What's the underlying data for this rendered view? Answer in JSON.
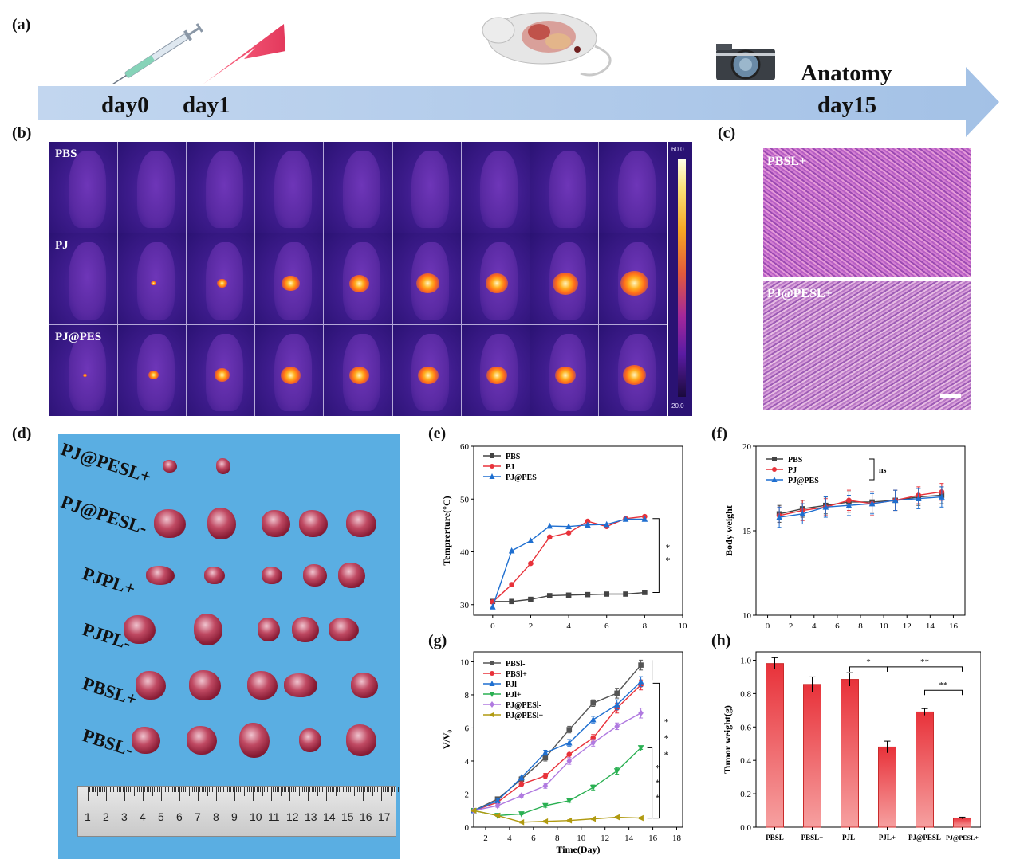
{
  "panels": {
    "a": "(a)",
    "b": "(b)",
    "c": "(c)",
    "d": "(d)",
    "e": "(e)",
    "f": "(f)",
    "g": "(g)",
    "h": "(h)"
  },
  "timeline": {
    "day0": "day0",
    "day1": "day1",
    "anatomy": "Anatomy",
    "day15": "day15"
  },
  "thermal": {
    "rows": [
      "PBS",
      "PJ",
      "PJ@PES"
    ],
    "colorbar_max": "60.0",
    "colorbar_min": "20.0"
  },
  "histology": {
    "top_label": "PBSL+",
    "bottom_label": "PJ@PESL+"
  },
  "tumor_photo": {
    "groups": [
      "PJ@PESL+",
      "PJ@PESL-",
      "PJPL+",
      "PJPL-",
      "PBSL+",
      "PBSL-"
    ],
    "ruler_numbers": [
      "1",
      "2",
      "3",
      "4",
      "5",
      "6",
      "7",
      "8",
      "9",
      "10",
      "11",
      "12",
      "13",
      "14",
      "15",
      "16",
      "17"
    ]
  },
  "chart_data": [
    {
      "id": "e",
      "type": "line",
      "xlabel": "Time(s)",
      "ylabel": "Temprerture(°C)",
      "xlim": [
        -1,
        10
      ],
      "ylim": [
        28,
        60
      ],
      "xticks": [
        0,
        2,
        4,
        6,
        8,
        10
      ],
      "yticks": [
        30,
        40,
        50,
        60
      ],
      "legend": "top-left",
      "x": [
        0,
        1,
        2,
        3,
        4,
        5,
        6,
        7,
        8
      ],
      "series": [
        {
          "name": "PBS",
          "color": "#444444",
          "marker": "square",
          "values": [
            30.6,
            30.6,
            31.0,
            31.7,
            31.8,
            31.9,
            32.0,
            32.0,
            32.3
          ]
        },
        {
          "name": "PJ",
          "color": "#e8323a",
          "marker": "circle",
          "values": [
            30.5,
            33.8,
            37.8,
            42.8,
            43.6,
            45.8,
            44.8,
            46.3,
            46.7
          ]
        },
        {
          "name": "PJ@PES",
          "color": "#1f6fd0",
          "marker": "triangle",
          "values": [
            29.6,
            40.2,
            42.1,
            44.9,
            44.8,
            45.1,
            45.2,
            46.2,
            46.2
          ]
        }
      ],
      "annotations": [
        "*",
        "*"
      ]
    },
    {
      "id": "f",
      "type": "line",
      "xlabel": "Time(Day)",
      "ylabel": "Body weight",
      "xlim": [
        -1,
        17
      ],
      "ylim": [
        10,
        20
      ],
      "xticks": [
        0,
        2,
        4,
        6,
        8,
        10,
        12,
        14,
        16
      ],
      "yticks": [
        10,
        15,
        20
      ],
      "legend": "top-left",
      "x": [
        1,
        3,
        5,
        7,
        9,
        11,
        13,
        15
      ],
      "series": [
        {
          "name": "PBS",
          "color": "#444444",
          "marker": "square",
          "values": [
            16.0,
            16.3,
            16.5,
            16.7,
            16.7,
            16.8,
            17.0,
            17.1
          ],
          "err": [
            0.5,
            0.5,
            0.5,
            0.6,
            0.6,
            0.6,
            0.5,
            0.5
          ]
        },
        {
          "name": "PJ",
          "color": "#e8323a",
          "marker": "circle",
          "values": [
            15.9,
            16.2,
            16.4,
            16.8,
            16.6,
            16.8,
            17.1,
            17.3
          ],
          "err": [
            0.5,
            0.6,
            0.5,
            0.6,
            0.7,
            0.6,
            0.5,
            0.5
          ]
        },
        {
          "name": "PJ@PES",
          "color": "#1f6fd0",
          "marker": "triangle",
          "values": [
            15.8,
            16.0,
            16.4,
            16.5,
            16.6,
            16.8,
            16.9,
            17.0
          ],
          "err": [
            0.6,
            0.6,
            0.6,
            0.6,
            0.6,
            0.6,
            0.6,
            0.6
          ]
        }
      ],
      "annotations": [
        "ns"
      ]
    },
    {
      "id": "g",
      "type": "line",
      "xlabel": "Time(Day)",
      "ylabel": "V/V₀",
      "xlim": [
        1,
        18.5
      ],
      "ylim": [
        0,
        10.6
      ],
      "xticks": [
        2,
        4,
        6,
        8,
        10,
        12,
        14,
        16,
        18
      ],
      "yticks": [
        0,
        2,
        4,
        6,
        8,
        10
      ],
      "legend": "top-left",
      "x": [
        1,
        3,
        5,
        7,
        9,
        11,
        13,
        15
      ],
      "series": [
        {
          "name": "PBSl-",
          "color": "#555555",
          "marker": "square",
          "values": [
            1.0,
            1.7,
            2.9,
            4.2,
            5.9,
            7.5,
            8.1,
            9.8
          ],
          "err": [
            0.05,
            0.1,
            0.15,
            0.2,
            0.2,
            0.2,
            0.3,
            0.3
          ]
        },
        {
          "name": "PBSl+",
          "color": "#e8323a",
          "marker": "circle",
          "values": [
            1.0,
            1.5,
            2.6,
            3.1,
            4.4,
            5.4,
            7.2,
            8.6
          ],
          "err": [
            0.05,
            0.1,
            0.15,
            0.15,
            0.2,
            0.2,
            0.3,
            0.3
          ]
        },
        {
          "name": "PJl-",
          "color": "#1f6fd0",
          "marker": "triangle",
          "values": [
            1.0,
            1.6,
            3.0,
            4.5,
            5.1,
            6.5,
            7.4,
            8.8
          ],
          "err": [
            0.05,
            0.1,
            0.15,
            0.15,
            0.2,
            0.2,
            0.3,
            0.3
          ]
        },
        {
          "name": "PJl+",
          "color": "#2ab052",
          "marker": "triangle-down",
          "values": [
            1.0,
            0.7,
            0.8,
            1.3,
            1.6,
            2.4,
            3.4,
            4.8
          ],
          "err": [
            0.05,
            0.05,
            0.05,
            0.1,
            0.1,
            0.15,
            0.2,
            0.1
          ]
        },
        {
          "name": "PJ@PESl-",
          "color": "#b07ae0",
          "marker": "diamond",
          "values": [
            1.0,
            1.3,
            1.9,
            2.5,
            4.0,
            5.1,
            6.1,
            6.9
          ],
          "err": [
            0.05,
            0.1,
            0.1,
            0.15,
            0.2,
            0.2,
            0.2,
            0.3
          ]
        },
        {
          "name": "PJ@PESl+",
          "color": "#b09a10",
          "marker": "triangle-left",
          "values": [
            1.0,
            0.7,
            0.3,
            0.35,
            0.4,
            0.5,
            0.6,
            0.55
          ],
          "err": [
            0.05,
            0.05,
            0.05,
            0.05,
            0.05,
            0.05,
            0.05,
            0.05
          ]
        }
      ],
      "annotations": [
        "*",
        "*",
        "*",
        "*",
        "*",
        "*"
      ]
    },
    {
      "id": "h",
      "type": "bar",
      "xlabel": "",
      "ylabel": "Tumor weight(g)",
      "ylim": [
        0,
        1.05
      ],
      "yticks": [
        0.0,
        0.2,
        0.4,
        0.6,
        0.8,
        1.0
      ],
      "categories": [
        "PBSL",
        "PBSL+",
        "PJL-",
        "PJL+",
        "PJ@PESL",
        "PJ@PESL+"
      ],
      "values": [
        0.98,
        0.855,
        0.885,
        0.48,
        0.69,
        0.055
      ],
      "err": [
        0.035,
        0.045,
        0.04,
        0.035,
        0.02,
        0.005
      ],
      "color": "#e8323a",
      "annotations": [
        "*",
        "**",
        "**"
      ]
    }
  ]
}
